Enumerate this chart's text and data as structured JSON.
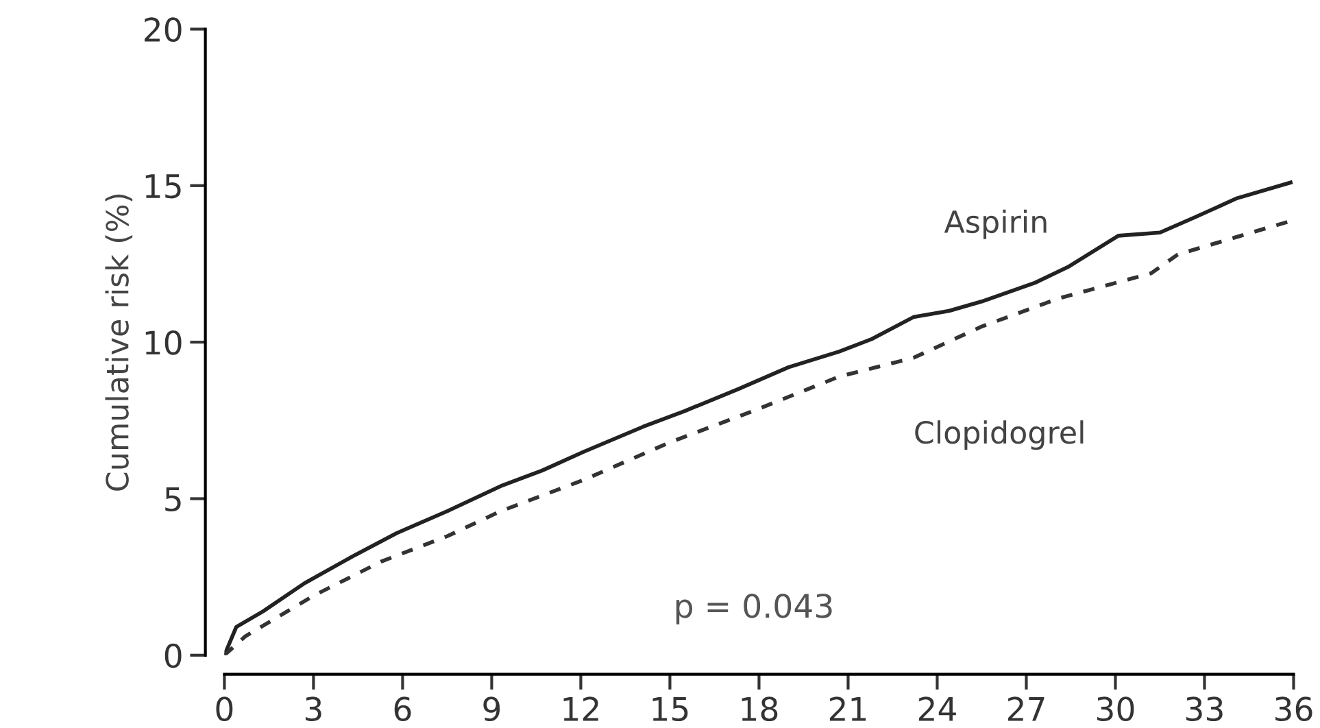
{
  "chart_data": {
    "type": "line",
    "ylabel": "Cumulative risk (%)",
    "xlim": [
      0,
      36
    ],
    "xticks": [
      0,
      3,
      6,
      9,
      12,
      15,
      18,
      21,
      24,
      27,
      30,
      33,
      36
    ],
    "ylim": [
      0,
      20
    ],
    "yticks": [
      0,
      5,
      10,
      15,
      20
    ],
    "grid": false,
    "legend": false,
    "marker": "none",
    "series": [
      {
        "name": "Aspirin",
        "color": "#222222",
        "line_style": "solid",
        "x": [
          0,
          0.4,
          1.3,
          2.7,
          4.4,
          5.8,
          7.5,
          9.3,
          10.7,
          12.1,
          14.1,
          15.5,
          17.3,
          19.0,
          20.7,
          21.8,
          23.2,
          24.4,
          25.5,
          27.3,
          28.4,
          30.1,
          31.5,
          32.7,
          34.1,
          35.9
        ],
        "values": [
          0,
          0.9,
          1.4,
          2.3,
          3.2,
          3.9,
          4.6,
          5.4,
          5.9,
          6.5,
          7.3,
          7.8,
          8.5,
          9.2,
          9.7,
          10.1,
          10.8,
          11.0,
          11.3,
          11.9,
          12.4,
          13.4,
          13.5,
          14.0,
          14.6,
          15.1
        ]
      },
      {
        "name": "Clopidogrel",
        "color": "#333333",
        "line_style": "dashed",
        "x": [
          0,
          0.7,
          3.0,
          5.3,
          7.5,
          9.3,
          12.1,
          15.0,
          17.8,
          20.7,
          23.2,
          25.5,
          28.1,
          31.2,
          32.1,
          36
        ],
        "values": [
          0,
          0.6,
          1.9,
          3.0,
          3.8,
          4.6,
          5.6,
          6.8,
          7.8,
          8.9,
          9.5,
          10.5,
          11.4,
          12.2,
          12.8,
          13.9
        ]
      }
    ],
    "annotations": [
      "p = 0.043"
    ]
  }
}
